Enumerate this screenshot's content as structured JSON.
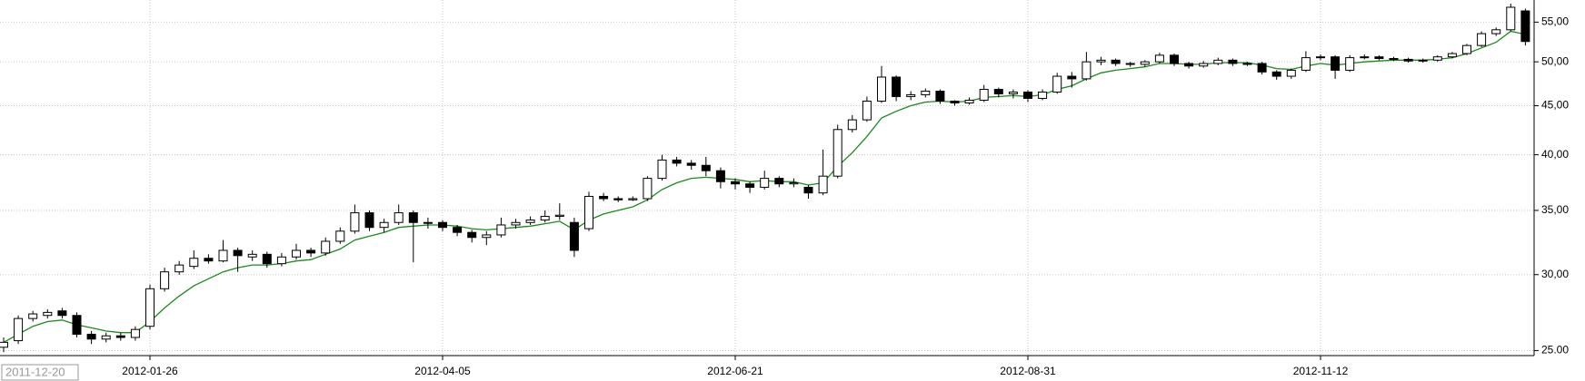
{
  "chart_data": {
    "type": "candlestick",
    "categories": [
      "2011-12-20",
      null,
      null,
      null,
      null,
      null,
      null,
      null,
      null,
      null,
      "2012-01-26",
      null,
      null,
      null,
      null,
      null,
      null,
      null,
      null,
      null,
      null,
      null,
      null,
      null,
      null,
      null,
      null,
      null,
      null,
      null,
      "2012-04-05",
      null,
      null,
      null,
      null,
      null,
      null,
      null,
      null,
      null,
      null,
      null,
      null,
      null,
      null,
      null,
      null,
      null,
      null,
      null,
      "2012-06-21",
      null,
      null,
      null,
      null,
      null,
      null,
      null,
      null,
      null,
      null,
      null,
      null,
      null,
      null,
      null,
      null,
      null,
      null,
      null,
      "2012-08-31",
      null,
      null,
      null,
      null,
      null,
      null,
      null,
      null,
      null,
      null,
      null,
      null,
      null,
      null,
      null,
      null,
      null,
      null,
      null,
      "2012-11-12",
      null,
      null,
      null,
      null,
      null,
      null,
      null,
      null,
      null,
      null,
      null,
      null,
      null,
      null
    ],
    "ohlc": [
      [
        25.2,
        25.8,
        24.9,
        25.5
      ],
      [
        25.6,
        27.2,
        25.4,
        27.0
      ],
      [
        27.0,
        27.5,
        26.8,
        27.3
      ],
      [
        27.2,
        27.6,
        27.0,
        27.4
      ],
      [
        27.5,
        27.7,
        27.0,
        27.2
      ],
      [
        27.2,
        27.4,
        25.8,
        26.0
      ],
      [
        26.0,
        26.2,
        25.4,
        25.7
      ],
      [
        25.7,
        26.1,
        25.5,
        25.9
      ],
      [
        25.9,
        26.1,
        25.6,
        25.8
      ],
      [
        25.8,
        26.5,
        25.6,
        26.3
      ],
      [
        26.5,
        29.3,
        26.3,
        29.0
      ],
      [
        29.0,
        30.5,
        28.8,
        30.2
      ],
      [
        30.2,
        31.0,
        30.0,
        30.7
      ],
      [
        30.6,
        31.8,
        30.4,
        31.2
      ],
      [
        31.2,
        31.5,
        30.8,
        31.0
      ],
      [
        31.0,
        32.6,
        30.9,
        31.8
      ],
      [
        31.8,
        32.0,
        30.2,
        31.4
      ],
      [
        31.3,
        31.8,
        31.0,
        31.5
      ],
      [
        31.5,
        31.7,
        30.5,
        30.8
      ],
      [
        30.8,
        31.6,
        30.6,
        31.3
      ],
      [
        31.3,
        32.3,
        31.1,
        31.8
      ],
      [
        31.8,
        32.0,
        31.3,
        31.6
      ],
      [
        31.6,
        32.8,
        31.4,
        32.5
      ],
      [
        32.5,
        33.6,
        32.3,
        33.3
      ],
      [
        33.3,
        35.5,
        33.1,
        34.8
      ],
      [
        34.8,
        35.0,
        33.3,
        33.6
      ],
      [
        33.6,
        34.3,
        33.2,
        34.0
      ],
      [
        34.0,
        35.5,
        33.8,
        34.8
      ],
      [
        34.8,
        35.0,
        30.9,
        34.0
      ],
      [
        34.0,
        34.4,
        33.5,
        34.0
      ],
      [
        34.0,
        34.2,
        33.3,
        33.6
      ],
      [
        33.6,
        33.8,
        32.9,
        33.2
      ],
      [
        33.2,
        33.4,
        32.4,
        32.8
      ],
      [
        32.8,
        33.3,
        32.2,
        33.0
      ],
      [
        33.0,
        34.4,
        32.8,
        33.8
      ],
      [
        33.8,
        34.3,
        33.5,
        34.0
      ],
      [
        34.0,
        34.5,
        33.8,
        34.2
      ],
      [
        34.2,
        35.0,
        34.0,
        34.5
      ],
      [
        34.5,
        35.6,
        34.2,
        34.6
      ],
      [
        34.0,
        34.4,
        31.3,
        31.8
      ],
      [
        33.5,
        36.6,
        33.3,
        36.2
      ],
      [
        36.2,
        36.5,
        35.8,
        36.0
      ],
      [
        36.0,
        36.2,
        35.7,
        35.9
      ],
      [
        35.9,
        36.2,
        35.8,
        36.0
      ],
      [
        36.0,
        38.0,
        35.8,
        37.8
      ],
      [
        37.8,
        40.0,
        37.6,
        39.5
      ],
      [
        39.5,
        39.8,
        38.9,
        39.2
      ],
      [
        39.2,
        39.5,
        38.6,
        39.0
      ],
      [
        39.0,
        39.8,
        38.0,
        38.5
      ],
      [
        38.5,
        38.8,
        36.9,
        37.5
      ],
      [
        37.5,
        37.8,
        36.8,
        37.3
      ],
      [
        37.3,
        37.5,
        36.5,
        37.0
      ],
      [
        37.0,
        38.5,
        36.8,
        37.8
      ],
      [
        37.8,
        38.0,
        37.0,
        37.3
      ],
      [
        37.3,
        37.8,
        37.0,
        37.4
      ],
      [
        37.0,
        37.2,
        36.0,
        36.5
      ],
      [
        36.5,
        40.5,
        36.3,
        38.0
      ],
      [
        38.0,
        43.0,
        37.8,
        42.5
      ],
      [
        42.5,
        44.0,
        42.2,
        43.5
      ],
      [
        43.5,
        46.0,
        43.3,
        45.5
      ],
      [
        45.5,
        49.5,
        45.3,
        48.2
      ],
      [
        48.2,
        48.4,
        45.5,
        46.0
      ],
      [
        46.0,
        46.6,
        45.6,
        46.2
      ],
      [
        46.2,
        46.9,
        45.9,
        46.6
      ],
      [
        46.6,
        46.8,
        45.2,
        45.5
      ],
      [
        45.5,
        45.6,
        45.0,
        45.3
      ],
      [
        45.3,
        45.9,
        45.1,
        45.6
      ],
      [
        45.6,
        47.3,
        45.4,
        46.8
      ],
      [
        46.8,
        47.0,
        45.9,
        46.3
      ],
      [
        46.3,
        46.8,
        45.8,
        46.5
      ],
      [
        46.5,
        46.7,
        45.4,
        45.8
      ],
      [
        45.8,
        46.8,
        45.6,
        46.5
      ],
      [
        46.5,
        48.7,
        46.3,
        48.3
      ],
      [
        48.3,
        48.8,
        47.0,
        48.0
      ],
      [
        48.0,
        51.2,
        47.8,
        50.0
      ],
      [
        50.0,
        50.6,
        49.6,
        50.2
      ],
      [
        50.2,
        50.4,
        49.5,
        49.8
      ],
      [
        49.8,
        50.0,
        49.4,
        49.7
      ],
      [
        49.7,
        50.2,
        49.4,
        50.0
      ],
      [
        50.0,
        51.1,
        49.8,
        50.8
      ],
      [
        50.8,
        51.0,
        49.5,
        49.8
      ],
      [
        49.8,
        50.0,
        49.2,
        49.5
      ],
      [
        49.5,
        50.1,
        49.3,
        49.8
      ],
      [
        49.8,
        50.5,
        49.6,
        50.2
      ],
      [
        50.2,
        50.4,
        49.5,
        49.8
      ],
      [
        49.8,
        50.0,
        49.5,
        49.8
      ],
      [
        49.8,
        50.0,
        48.5,
        48.8
      ],
      [
        48.8,
        49.0,
        47.9,
        48.3
      ],
      [
        48.3,
        49.2,
        48.0,
        49.0
      ],
      [
        49.0,
        51.3,
        48.8,
        50.5
      ],
      [
        50.5,
        50.9,
        50.2,
        50.6
      ],
      [
        50.6,
        50.8,
        48.0,
        49.0
      ],
      [
        49.0,
        50.8,
        48.8,
        50.5
      ],
      [
        50.5,
        50.9,
        50.3,
        50.6
      ],
      [
        50.6,
        50.8,
        50.2,
        50.4
      ],
      [
        50.4,
        50.6,
        50.1,
        50.3
      ],
      [
        50.3,
        50.5,
        49.9,
        50.1
      ],
      [
        50.1,
        50.4,
        49.9,
        50.2
      ],
      [
        50.2,
        50.8,
        50.0,
        50.6
      ],
      [
        50.6,
        51.2,
        50.4,
        51.0
      ],
      [
        51.0,
        52.2,
        50.8,
        52.0
      ],
      [
        52.0,
        53.8,
        51.8,
        53.5
      ],
      [
        53.5,
        54.3,
        53.2,
        54.0
      ],
      [
        54.0,
        57.5,
        53.8,
        57.0
      ],
      [
        56.5,
        56.8,
        52.0,
        52.5
      ]
    ],
    "ma": {
      "color": "#1a8a1a",
      "values": [
        25.5,
        26.0,
        26.5,
        26.8,
        26.9,
        26.6,
        26.4,
        26.2,
        26.1,
        26.1,
        26.8,
        27.7,
        28.5,
        29.2,
        29.7,
        30.2,
        30.5,
        30.7,
        30.7,
        30.8,
        31.0,
        31.1,
        31.5,
        31.9,
        32.6,
        32.9,
        33.2,
        33.6,
        33.7,
        33.8,
        33.8,
        33.7,
        33.5,
        33.4,
        33.5,
        33.6,
        33.7,
        33.9,
        34.1,
        33.4,
        34.2,
        34.7,
        35.0,
        35.3,
        35.9,
        36.8,
        37.4,
        37.8,
        37.9,
        37.8,
        37.7,
        37.5,
        37.6,
        37.5,
        37.5,
        37.2,
        37.4,
        38.9,
        40.2,
        41.8,
        43.7,
        44.4,
        45.0,
        45.4,
        45.5,
        45.4,
        45.5,
        45.9,
        46.0,
        46.1,
        46.0,
        46.2,
        46.8,
        47.2,
        48.0,
        48.7,
        49.0,
        49.2,
        49.4,
        49.8,
        49.8,
        49.7,
        49.7,
        49.9,
        49.9,
        49.9,
        49.6,
        49.2,
        49.1,
        49.5,
        49.8,
        49.6,
        49.8,
        50.0,
        50.1,
        50.2,
        50.2,
        50.2,
        50.3,
        50.5,
        51.0,
        51.7,
        52.4,
        53.8,
        53.4
      ]
    },
    "up_color": "#ffffff",
    "down_color": "#000000",
    "ylim": [
      24.7,
      58
    ],
    "log_scale": true,
    "grid": true,
    "yticks": [
      {
        "value": 25,
        "label": "25.00"
      },
      {
        "value": 30,
        "label": "30,00"
      },
      {
        "value": 35,
        "label": "35,00"
      },
      {
        "value": 40,
        "label": "40,00"
      },
      {
        "value": 45,
        "label": "45,00"
      },
      {
        "value": 50,
        "label": "50,00"
      },
      {
        "value": 55,
        "label": "55,00"
      }
    ]
  }
}
